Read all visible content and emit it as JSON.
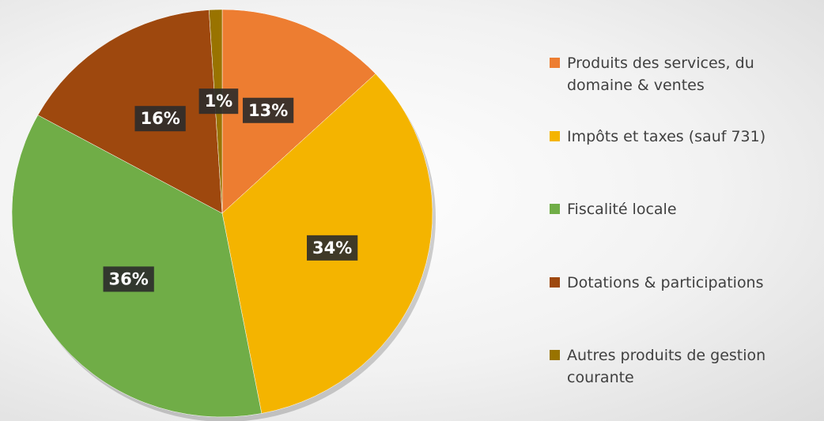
{
  "chart_data": {
    "type": "pie",
    "categories": [
      "Produits des services, du domaine & ventes",
      "Impôts et taxes (sauf 731)",
      "Fiscalité locale",
      "Dotations & participations",
      "Autres produits de gestion courante"
    ],
    "values": [
      13,
      34,
      36,
      16,
      1
    ],
    "value_labels": [
      "13%",
      "34%",
      "36%",
      "16%",
      "1%"
    ],
    "colors": [
      "#ed7d31",
      "#f4b400",
      "#70ad47",
      "#9e480e",
      "#997300"
    ],
    "legend": "right"
  }
}
